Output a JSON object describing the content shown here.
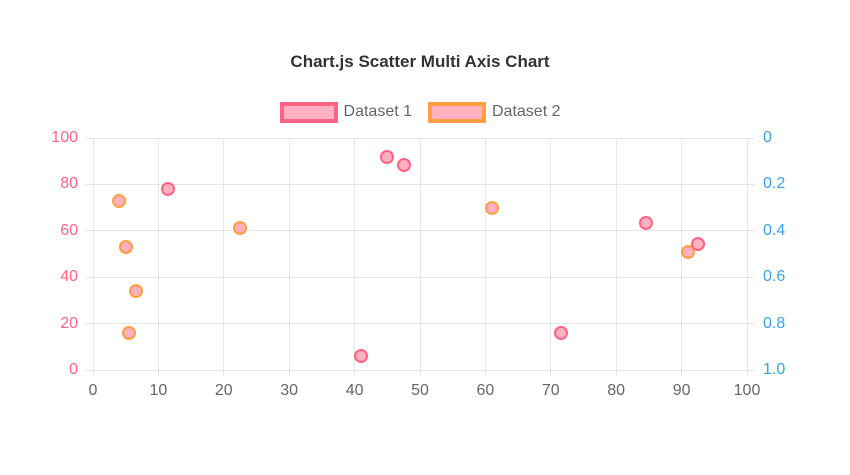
{
  "page": {
    "background": "#ffffff"
  },
  "chart_data": {
    "type": "scatter",
    "title": "Chart.js Scatter Multi Axis Chart",
    "title_color": "#333333",
    "legend_position": "top",
    "grid": true,
    "grid_color": "#e6e6e6",
    "tick_text_color": "#666666",
    "x_axis": {
      "min": 0,
      "max": 100,
      "ticks": [
        {
          "value": 0,
          "label": "0"
        },
        {
          "value": 10,
          "label": "10"
        },
        {
          "value": 20,
          "label": "20"
        },
        {
          "value": 30,
          "label": "30"
        },
        {
          "value": 40,
          "label": "40"
        },
        {
          "value": 50,
          "label": "50"
        },
        {
          "value": 60,
          "label": "60"
        },
        {
          "value": 70,
          "label": "70"
        },
        {
          "value": 80,
          "label": "80"
        },
        {
          "value": 90,
          "label": "90"
        },
        {
          "value": 100,
          "label": "100"
        }
      ]
    },
    "y_axis_left": {
      "min": 0,
      "max": 100,
      "color": "#ff6384",
      "ticks": [
        {
          "value": 100,
          "label": "100"
        },
        {
          "value": 80,
          "label": "80"
        },
        {
          "value": 60,
          "label": "60"
        },
        {
          "value": 40,
          "label": "40"
        },
        {
          "value": 20,
          "label": "20"
        },
        {
          "value": 0,
          "label": "0"
        }
      ]
    },
    "y_axis_right": {
      "min": 0,
      "max": 1,
      "reversed": true,
      "color": "#36a2eb",
      "ticks": [
        {
          "value": 0,
          "label": "0"
        },
        {
          "value": 0.2,
          "label": "0.2"
        },
        {
          "value": 0.4,
          "label": "0.4"
        },
        {
          "value": 0.6,
          "label": "0.6"
        },
        {
          "value": 0.8,
          "label": "0.8"
        },
        {
          "value": 1,
          "label": "1.0"
        }
      ]
    },
    "series": [
      {
        "name": "Dataset 1",
        "axis": "left",
        "border_color": "#ff6384",
        "fill_color": "rgba(255,99,132,0.5)",
        "points": [
          {
            "x": 11.5,
            "y": 78
          },
          {
            "x": 41,
            "y": 6
          },
          {
            "x": 45,
            "y": 92
          },
          {
            "x": 47.5,
            "y": 88.5
          },
          {
            "x": 71.5,
            "y": 16
          },
          {
            "x": 84.5,
            "y": 63.5
          },
          {
            "x": 92.5,
            "y": 54.5
          }
        ]
      },
      {
        "name": "Dataset 2",
        "axis": "right",
        "border_color": "#ff9f40",
        "fill_color": "rgba(255,99,132,0.5)",
        "points": [
          {
            "x": 4,
            "y": 0.27
          },
          {
            "x": 5,
            "y": 0.47
          },
          {
            "x": 5.5,
            "y": 0.84
          },
          {
            "x": 6.5,
            "y": 0.66
          },
          {
            "x": 22.5,
            "y": 0.39
          },
          {
            "x": 61,
            "y": 0.3
          },
          {
            "x": 91,
            "y": 0.49
          }
        ]
      }
    ]
  }
}
